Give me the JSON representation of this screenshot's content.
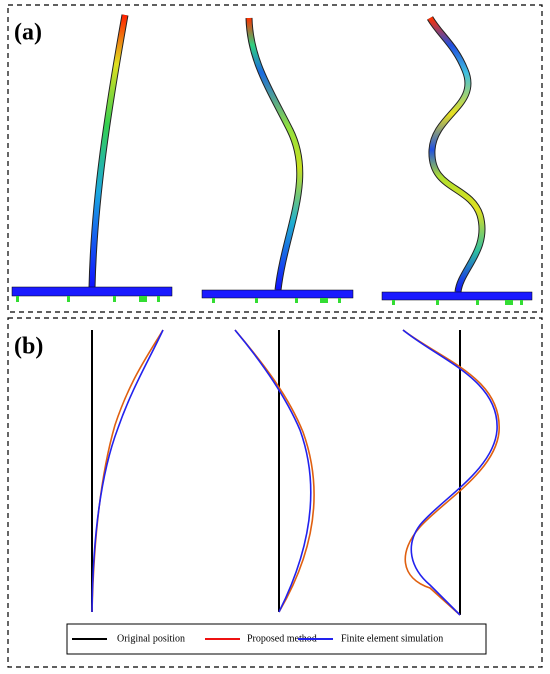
{
  "panels": [
    {
      "label": "(a)"
    },
    {
      "label": "(b)",
      "legend": [
        "Original position",
        "Proposed method",
        "Finite element simulation"
      ]
    }
  ]
}
